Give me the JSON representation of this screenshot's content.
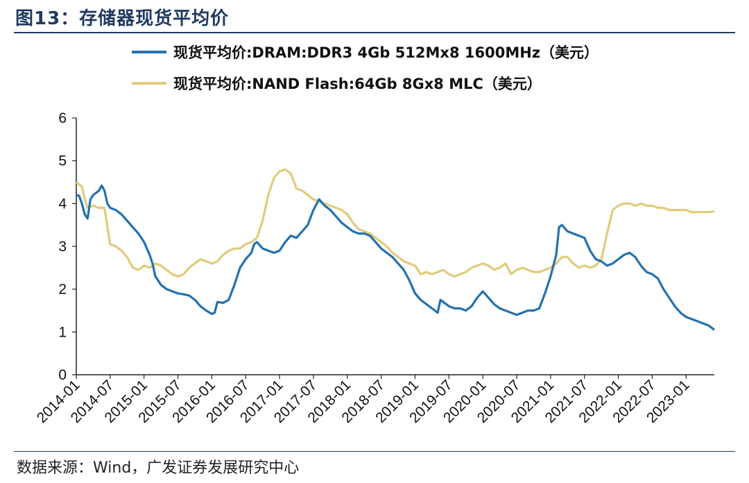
{
  "figure": {
    "title": "图13：存储器现货平均价",
    "source": "数据来源：Wind，广发证券发展研究中心"
  },
  "colors": {
    "dram": "#2371ae",
    "nand": "#e2cb7a",
    "axis": "#222222",
    "title": "#1f3a5f"
  },
  "chart_data": {
    "type": "line",
    "title": "",
    "xlabel": "",
    "ylabel": "",
    "ylim": [
      0,
      6
    ],
    "yticks": [
      0,
      1,
      2,
      3,
      4,
      5,
      6
    ],
    "x_start": "2014-01",
    "x_end": "2023-05",
    "xtick_labels": [
      "2014-01",
      "2014-07",
      "2015-01",
      "2015-07",
      "2016-01",
      "2016-07",
      "2017-01",
      "2017-07",
      "2018-01",
      "2018-07",
      "2019-01",
      "2019-07",
      "2020-01",
      "2020-07",
      "2021-01",
      "2021-07",
      "2022-01",
      "2022-07",
      "2023-01"
    ],
    "legend_position": "top",
    "series": [
      {
        "name": "现货平均价:DRAM:DDR3 4Gb 512Mx8 1600MHz（美元）",
        "color_key": "dram",
        "points": [
          [
            0,
            4.2
          ],
          [
            0.5,
            4.18
          ],
          [
            1,
            4.0
          ],
          [
            1.5,
            3.75
          ],
          [
            2,
            3.65
          ],
          [
            2.5,
            4.1
          ],
          [
            3,
            4.2
          ],
          [
            4,
            4.3
          ],
          [
            4.5,
            4.42
          ],
          [
            5,
            4.3
          ],
          [
            5.5,
            4.0
          ],
          [
            6,
            3.9
          ],
          [
            7,
            3.85
          ],
          [
            8,
            3.75
          ],
          [
            9,
            3.6
          ],
          [
            10,
            3.45
          ],
          [
            11,
            3.3
          ],
          [
            12,
            3.1
          ],
          [
            13,
            2.8
          ],
          [
            13.5,
            2.6
          ],
          [
            14,
            2.3
          ],
          [
            14.5,
            2.2
          ],
          [
            15,
            2.1
          ],
          [
            16,
            2.0
          ],
          [
            17,
            1.95
          ],
          [
            18,
            1.9
          ],
          [
            19,
            1.88
          ],
          [
            20,
            1.85
          ],
          [
            21,
            1.75
          ],
          [
            22,
            1.6
          ],
          [
            23,
            1.5
          ],
          [
            24,
            1.42
          ],
          [
            24.5,
            1.45
          ],
          [
            25,
            1.7
          ],
          [
            26,
            1.68
          ],
          [
            27,
            1.75
          ],
          [
            28,
            2.1
          ],
          [
            29,
            2.5
          ],
          [
            30,
            2.7
          ],
          [
            31,
            2.85
          ],
          [
            31.5,
            3.05
          ],
          [
            32,
            3.1
          ],
          [
            33,
            2.95
          ],
          [
            34,
            2.9
          ],
          [
            35,
            2.85
          ],
          [
            36,
            2.9
          ],
          [
            37,
            3.1
          ],
          [
            38,
            3.25
          ],
          [
            39,
            3.2
          ],
          [
            40,
            3.35
          ],
          [
            41,
            3.5
          ],
          [
            42,
            3.85
          ],
          [
            43,
            4.1
          ],
          [
            44,
            3.95
          ],
          [
            45,
            3.85
          ],
          [
            46,
            3.7
          ],
          [
            47,
            3.55
          ],
          [
            48,
            3.45
          ],
          [
            49,
            3.35
          ],
          [
            50,
            3.3
          ],
          [
            51,
            3.3
          ],
          [
            52,
            3.25
          ],
          [
            53,
            3.1
          ],
          [
            54,
            2.95
          ],
          [
            55,
            2.85
          ],
          [
            56,
            2.75
          ],
          [
            57,
            2.6
          ],
          [
            58,
            2.45
          ],
          [
            59,
            2.2
          ],
          [
            60,
            1.9
          ],
          [
            61,
            1.75
          ],
          [
            62,
            1.65
          ],
          [
            63,
            1.55
          ],
          [
            64,
            1.45
          ],
          [
            64.5,
            1.75
          ],
          [
            65,
            1.7
          ],
          [
            66,
            1.6
          ],
          [
            67,
            1.55
          ],
          [
            68,
            1.55
          ],
          [
            69,
            1.5
          ],
          [
            70,
            1.6
          ],
          [
            71,
            1.8
          ],
          [
            72,
            1.95
          ],
          [
            73,
            1.8
          ],
          [
            74,
            1.65
          ],
          [
            75,
            1.55
          ],
          [
            76,
            1.5
          ],
          [
            77,
            1.45
          ],
          [
            78,
            1.4
          ],
          [
            79,
            1.45
          ],
          [
            80,
            1.5
          ],
          [
            81,
            1.5
          ],
          [
            82,
            1.55
          ],
          [
            83,
            1.9
          ],
          [
            84,
            2.3
          ],
          [
            85,
            2.8
          ],
          [
            85.5,
            3.45
          ],
          [
            86,
            3.5
          ],
          [
            87,
            3.35
          ],
          [
            88,
            3.3
          ],
          [
            89,
            3.25
          ],
          [
            90,
            3.2
          ],
          [
            91,
            2.9
          ],
          [
            92,
            2.7
          ],
          [
            93,
            2.65
          ],
          [
            94,
            2.55
          ],
          [
            95,
            2.6
          ],
          [
            96,
            2.7
          ],
          [
            97,
            2.8
          ],
          [
            98,
            2.85
          ],
          [
            99,
            2.75
          ],
          [
            100,
            2.55
          ],
          [
            101,
            2.4
          ],
          [
            102,
            2.35
          ],
          [
            103,
            2.25
          ],
          [
            104,
            2.0
          ],
          [
            105,
            1.8
          ],
          [
            106,
            1.6
          ],
          [
            107,
            1.45
          ],
          [
            108,
            1.35
          ],
          [
            109,
            1.3
          ],
          [
            110,
            1.25
          ],
          [
            111,
            1.2
          ],
          [
            112,
            1.15
          ],
          [
            113,
            1.05
          ]
        ]
      },
      {
        "name": "现货平均价:NAND Flash:64Gb 8Gx8 MLC（美元）",
        "color_key": "nand",
        "points": [
          [
            0,
            4.5
          ],
          [
            1,
            4.4
          ],
          [
            1.5,
            4.1
          ],
          [
            2,
            3.9
          ],
          [
            3,
            3.95
          ],
          [
            4,
            3.9
          ],
          [
            5,
            3.9
          ],
          [
            6,
            3.05
          ],
          [
            7,
            3.0
          ],
          [
            8,
            2.9
          ],
          [
            9,
            2.75
          ],
          [
            10,
            2.5
          ],
          [
            11,
            2.45
          ],
          [
            12,
            2.55
          ],
          [
            13,
            2.5
          ],
          [
            14,
            2.6
          ],
          [
            15,
            2.55
          ],
          [
            16,
            2.45
          ],
          [
            17,
            2.35
          ],
          [
            18,
            2.3
          ],
          [
            19,
            2.35
          ],
          [
            20,
            2.5
          ],
          [
            21,
            2.6
          ],
          [
            22,
            2.7
          ],
          [
            23,
            2.65
          ],
          [
            24,
            2.6
          ],
          [
            25,
            2.65
          ],
          [
            26,
            2.8
          ],
          [
            27,
            2.9
          ],
          [
            28,
            2.95
          ],
          [
            29,
            2.95
          ],
          [
            30,
            3.05
          ],
          [
            31,
            3.1
          ],
          [
            32,
            3.2
          ],
          [
            33,
            3.6
          ],
          [
            34,
            4.2
          ],
          [
            35,
            4.6
          ],
          [
            36,
            4.75
          ],
          [
            37,
            4.8
          ],
          [
            38,
            4.7
          ],
          [
            39,
            4.35
          ],
          [
            40,
            4.3
          ],
          [
            41,
            4.2
          ],
          [
            42,
            4.1
          ],
          [
            43,
            4.05
          ],
          [
            44,
            4.0
          ],
          [
            45,
            3.95
          ],
          [
            46,
            3.9
          ],
          [
            47,
            3.85
          ],
          [
            48,
            3.75
          ],
          [
            49,
            3.55
          ],
          [
            50,
            3.4
          ],
          [
            51,
            3.35
          ],
          [
            52,
            3.3
          ],
          [
            53,
            3.2
          ],
          [
            54,
            3.1
          ],
          [
            55,
            3.0
          ],
          [
            56,
            2.85
          ],
          [
            57,
            2.75
          ],
          [
            58,
            2.65
          ],
          [
            59,
            2.6
          ],
          [
            60,
            2.55
          ],
          [
            61,
            2.35
          ],
          [
            62,
            2.4
          ],
          [
            63,
            2.35
          ],
          [
            64,
            2.4
          ],
          [
            65,
            2.45
          ],
          [
            66,
            2.35
          ],
          [
            67,
            2.3
          ],
          [
            68,
            2.35
          ],
          [
            69,
            2.4
          ],
          [
            70,
            2.5
          ],
          [
            71,
            2.55
          ],
          [
            72,
            2.6
          ],
          [
            73,
            2.55
          ],
          [
            74,
            2.45
          ],
          [
            75,
            2.5
          ],
          [
            76,
            2.6
          ],
          [
            77,
            2.35
          ],
          [
            78,
            2.45
          ],
          [
            79,
            2.5
          ],
          [
            80,
            2.45
          ],
          [
            81,
            2.4
          ],
          [
            82,
            2.4
          ],
          [
            83,
            2.45
          ],
          [
            84,
            2.5
          ],
          [
            85,
            2.6
          ],
          [
            86,
            2.75
          ],
          [
            87,
            2.75
          ],
          [
            88,
            2.6
          ],
          [
            89,
            2.5
          ],
          [
            90,
            2.55
          ],
          [
            91,
            2.5
          ],
          [
            92,
            2.55
          ],
          [
            93,
            2.7
          ],
          [
            94,
            3.3
          ],
          [
            95,
            3.85
          ],
          [
            96,
            3.95
          ],
          [
            97,
            4.0
          ],
          [
            98,
            4.0
          ],
          [
            99,
            3.95
          ],
          [
            100,
            4.0
          ],
          [
            101,
            3.95
          ],
          [
            102,
            3.95
          ],
          [
            103,
            3.9
          ],
          [
            104,
            3.9
          ],
          [
            105,
            3.85
          ],
          [
            106,
            3.85
          ],
          [
            107,
            3.85
          ],
          [
            108,
            3.85
          ],
          [
            109,
            3.8
          ],
          [
            110,
            3.8
          ],
          [
            111,
            3.8
          ],
          [
            112,
            3.8
          ],
          [
            113,
            3.82
          ]
        ]
      }
    ]
  }
}
